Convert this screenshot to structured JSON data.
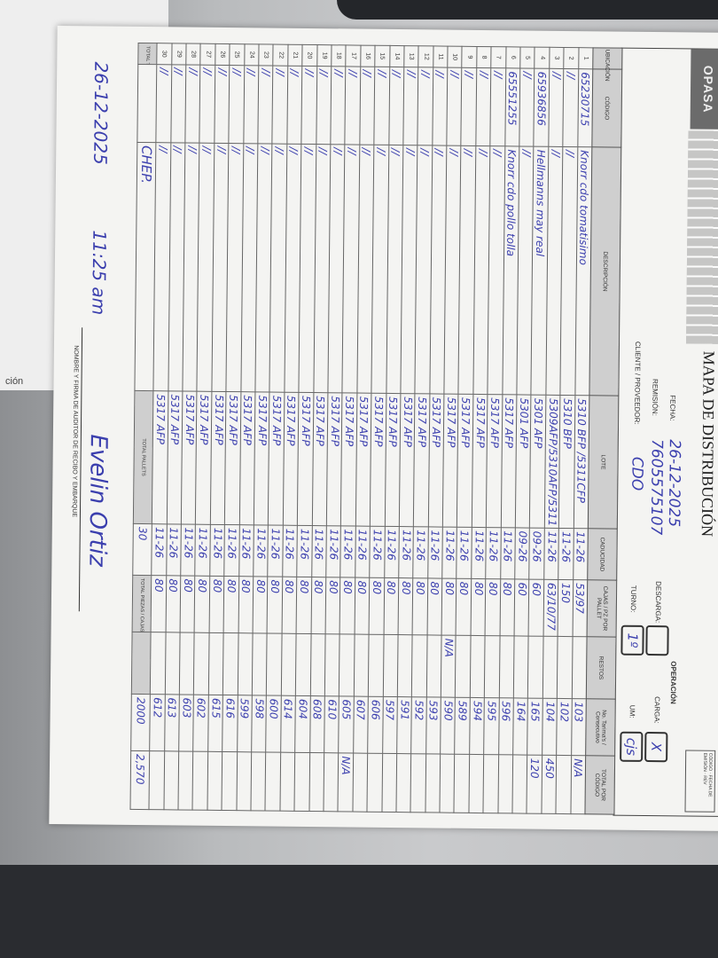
{
  "form": {
    "logo": "OPASA",
    "title": "MAPA DE DISTRIBUCIÓN",
    "doc_box": "CÓDIGO · FECHA DE EMISIÓN · REV",
    "labels": {
      "fecha": "FECHA:",
      "remision": "REMISIÓN:",
      "cliente": "CLIENTE / PROVEEDOR:",
      "operacion": "OPERACIÓN",
      "descarga": "DESCARGA:",
      "carga": "CARGA:",
      "turno": "TURNO:",
      "um": "UM:"
    },
    "values": {
      "fecha": "26-12-2025",
      "remision": "7605575107",
      "cliente": "CDO",
      "descarga": "",
      "carga": "X",
      "turno": "1º",
      "um": "cjs"
    },
    "columns": [
      "UBICACIÓN",
      "CÓDIGO",
      "DESCRIPCIÓN",
      "LOTE",
      "CADUCIDAD",
      "CAJAS / PZ POR PALLET",
      "RESTOS",
      "No. Tarima's / Consecutivo",
      "TOTAL POR CÓDIGO"
    ],
    "rows": [
      {
        "n": "1",
        "codigo": "65230715",
        "desc": "Knorr cdo tomatisimo",
        "lote": "5310 BFP /5311CFP",
        "cad": "11-26",
        "cajas": "53/97",
        "restos": "",
        "cons": "103",
        "total": "N/A"
      },
      {
        "n": "2",
        "codigo": "//",
        "desc": "//",
        "lote": "5310 BFP",
        "cad": "11-26",
        "cajas": "150",
        "restos": "",
        "cons": "102",
        "total": ""
      },
      {
        "n": "3",
        "codigo": "//",
        "desc": "//",
        "lote": "5309AFP/5310AFP/5311 CFP",
        "cad": "11-26",
        "cajas": "63/10/77",
        "restos": "",
        "cons": "104",
        "total": "450"
      },
      {
        "n": "4",
        "codigo": "65936856",
        "desc": "Hellmanns may real",
        "lote": "5301 AFP",
        "cad": "09-26",
        "cajas": "60",
        "restos": "",
        "cons": "165",
        "total": "120"
      },
      {
        "n": "5",
        "codigo": "//",
        "desc": "//",
        "lote": "5301 AFP",
        "cad": "09-26",
        "cajas": "60",
        "restos": "",
        "cons": "164",
        "total": ""
      },
      {
        "n": "6",
        "codigo": "65551255",
        "desc": "Knorr cdo pollo tolla",
        "lote": "5317 AFP",
        "cad": "11-26",
        "cajas": "80",
        "restos": "",
        "cons": "596",
        "total": ""
      },
      {
        "n": "7",
        "codigo": "//",
        "desc": "//",
        "lote": "5317 AFP",
        "cad": "11-26",
        "cajas": "80",
        "restos": "",
        "cons": "595",
        "total": ""
      },
      {
        "n": "8",
        "codigo": "//",
        "desc": "//",
        "lote": "5317 AFP",
        "cad": "11-26",
        "cajas": "80",
        "restos": "",
        "cons": "594",
        "total": ""
      },
      {
        "n": "9",
        "codigo": "//",
        "desc": "//",
        "lote": "5317 AFP",
        "cad": "11-26",
        "cajas": "80",
        "restos": "",
        "cons": "589",
        "total": ""
      },
      {
        "n": "10",
        "codigo": "//",
        "desc": "//",
        "lote": "5317 AFP",
        "cad": "11-26",
        "cajas": "80",
        "restos": "N/A",
        "cons": "590",
        "total": ""
      },
      {
        "n": "11",
        "codigo": "//",
        "desc": "//",
        "lote": "5317 AFP",
        "cad": "11-26",
        "cajas": "80",
        "restos": "",
        "cons": "593",
        "total": ""
      },
      {
        "n": "12",
        "codigo": "//",
        "desc": "//",
        "lote": "5317 AFP",
        "cad": "11-26",
        "cajas": "80",
        "restos": "",
        "cons": "592",
        "total": ""
      },
      {
        "n": "13",
        "codigo": "//",
        "desc": "//",
        "lote": "5317 AFP",
        "cad": "11-26",
        "cajas": "80",
        "restos": "",
        "cons": "591",
        "total": ""
      },
      {
        "n": "14",
        "codigo": "//",
        "desc": "//",
        "lote": "5317 AFP",
        "cad": "11-26",
        "cajas": "80",
        "restos": "",
        "cons": "597",
        "total": ""
      },
      {
        "n": "15",
        "codigo": "//",
        "desc": "//",
        "lote": "5317 AFP",
        "cad": "11-26",
        "cajas": "80",
        "restos": "",
        "cons": "606",
        "total": ""
      },
      {
        "n": "16",
        "codigo": "//",
        "desc": "//",
        "lote": "5317 AFP",
        "cad": "11-26",
        "cajas": "80",
        "restos": "",
        "cons": "607",
        "total": ""
      },
      {
        "n": "17",
        "codigo": "//",
        "desc": "//",
        "lote": "5317 AFP",
        "cad": "11-26",
        "cajas": "80",
        "restos": "",
        "cons": "605",
        "total": "N/A"
      },
      {
        "n": "18",
        "codigo": "//",
        "desc": "//",
        "lote": "5317 AFP",
        "cad": "11-26",
        "cajas": "80",
        "restos": "",
        "cons": "610",
        "total": ""
      },
      {
        "n": "19",
        "codigo": "//",
        "desc": "//",
        "lote": "5317 AFP",
        "cad": "11-26",
        "cajas": "80",
        "restos": "",
        "cons": "608",
        "total": ""
      },
      {
        "n": "20",
        "codigo": "//",
        "desc": "//",
        "lote": "5317 AFP",
        "cad": "11-26",
        "cajas": "80",
        "restos": "",
        "cons": "604",
        "total": ""
      },
      {
        "n": "21",
        "codigo": "//",
        "desc": "//",
        "lote": "5317 AFP",
        "cad": "11-26",
        "cajas": "80",
        "restos": "",
        "cons": "614",
        "total": ""
      },
      {
        "n": "22",
        "codigo": "//",
        "desc": "//",
        "lote": "5317 AFP",
        "cad": "11-26",
        "cajas": "80",
        "restos": "",
        "cons": "600",
        "total": ""
      },
      {
        "n": "23",
        "codigo": "//",
        "desc": "//",
        "lote": "5317 AFP",
        "cad": "11-26",
        "cajas": "80",
        "restos": "",
        "cons": "598",
        "total": ""
      },
      {
        "n": "24",
        "codigo": "//",
        "desc": "//",
        "lote": "5317 AFP",
        "cad": "11-26",
        "cajas": "80",
        "restos": "",
        "cons": "599",
        "total": ""
      },
      {
        "n": "25",
        "codigo": "//",
        "desc": "//",
        "lote": "5317 AFP",
        "cad": "11-26",
        "cajas": "80",
        "restos": "",
        "cons": "616",
        "total": ""
      },
      {
        "n": "26",
        "codigo": "//",
        "desc": "//",
        "lote": "5317 AFP",
        "cad": "11-26",
        "cajas": "80",
        "restos": "",
        "cons": "615",
        "total": ""
      },
      {
        "n": "27",
        "codigo": "//",
        "desc": "//",
        "lote": "5317 AFP",
        "cad": "11-26",
        "cajas": "80",
        "restos": "",
        "cons": "602",
        "total": ""
      },
      {
        "n": "28",
        "codigo": "//",
        "desc": "//",
        "lote": "5317 AFP",
        "cad": "11-26",
        "cajas": "80",
        "restos": "",
        "cons": "603",
        "total": ""
      },
      {
        "n": "29",
        "codigo": "//",
        "desc": "//",
        "lote": "5317 AFP",
        "cad": "11-26",
        "cajas": "80",
        "restos": "",
        "cons": "613",
        "total": ""
      },
      {
        "n": "30",
        "codigo": "//",
        "desc": "//",
        "lote": "5317 AFP",
        "cad": "11-26",
        "cajas": "80",
        "restos": "",
        "cons": "612",
        "total": ""
      }
    ],
    "totals": {
      "tarimas_label": "TOTAL TARIMAS",
      "tarimas_value": "CHEP.",
      "pallets_label": "TOTAL PALLETS",
      "pallets_value": "30",
      "piezas_label": "TOTAL PIEZAS / CAJAS",
      "piezas_value": "2000",
      "grand_total": "2,570"
    },
    "signature": {
      "date": "26-12-2025",
      "time": "11:25 am",
      "name": "Evelin Ortiz",
      "label": "NOMBRE Y FIRMA DE AUDITOR DE RECIBO Y EMBARQUE"
    },
    "side_sheet_text": "ción",
    "ink_color": "#3b3fae"
  }
}
